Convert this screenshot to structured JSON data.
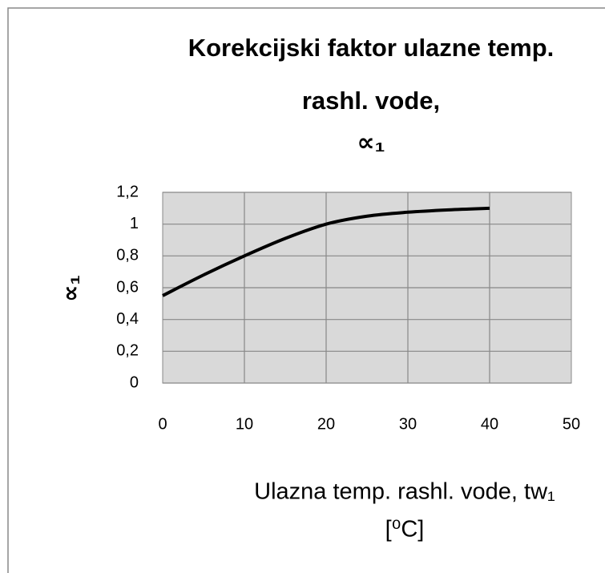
{
  "chart_data": {
    "type": "line",
    "title": [
      "Korekcijski faktor ulazne temp.",
      "rashl. vode,",
      "∝₁"
    ],
    "x_label": [
      "Ulazna temp. rashl. vode, tw₁",
      "[⁰C]"
    ],
    "y_label": "∝₁",
    "x": [
      0,
      5,
      10,
      15,
      20,
      25,
      30,
      35,
      40
    ],
    "series": [
      {
        "name": "∝₁",
        "color": "#000000",
        "values": [
          0.55,
          0.68,
          0.8,
          0.91,
          1.0,
          1.05,
          1.075,
          1.09,
          1.1
        ]
      }
    ],
    "xlim": [
      0,
      50
    ],
    "xticks": [
      0,
      10,
      20,
      30,
      40,
      50
    ],
    "ylim": [
      0,
      1.2
    ],
    "yticks": [
      0,
      {
        "value": 0.2,
        "label": "0,2"
      },
      {
        "value": 0.4,
        "label": "0,4"
      },
      {
        "value": 0.6,
        "label": "0,6"
      },
      {
        "value": 0.8,
        "label": "0,8"
      },
      1,
      {
        "value": 1.2,
        "label": "1,2"
      }
    ],
    "grid": true,
    "plot_background": "#d9d9d9"
  }
}
